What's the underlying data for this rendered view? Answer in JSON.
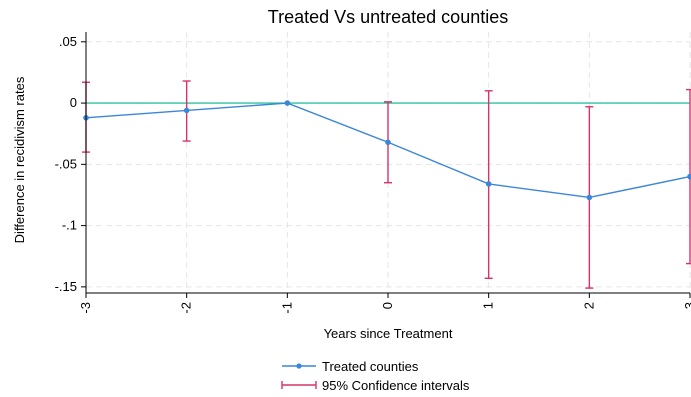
{
  "chart_data": {
    "type": "line",
    "title": "Treated Vs untreated counties",
    "xlabel": "Years since Treatment",
    "ylabel": "Difference in recidivism rates",
    "x": [
      -3,
      -2,
      -1,
      0,
      1,
      2,
      3
    ],
    "x_tick_labels": [
      "-3",
      "-2",
      "-1",
      "0",
      "1",
      "2",
      "3"
    ],
    "y_ticks": [
      0.05,
      0,
      -0.05,
      -0.1,
      -0.15
    ],
    "y_tick_labels": [
      ".05",
      "0",
      "-.05",
      "-.1",
      "-.15"
    ],
    "xlim": [
      -3,
      3
    ],
    "ylim": [
      -0.155,
      0.058
    ],
    "grid": true,
    "reference_line": {
      "y": 0,
      "color": "#2ec4a0"
    },
    "series": [
      {
        "name": "Treated counties",
        "color": "#3b86d8",
        "values": [
          -0.012,
          -0.006,
          0.0,
          -0.032,
          -0.066,
          -0.077,
          -0.06
        ]
      }
    ],
    "confidence_intervals": {
      "name": "95% Confidence intervals",
      "color": "#d6336c",
      "lower": [
        -0.04,
        -0.031,
        0.0,
        -0.065,
        -0.143,
        -0.151,
        -0.131
      ],
      "upper": [
        0.017,
        0.018,
        0.0,
        0.001,
        0.01,
        -0.003,
        0.011
      ]
    },
    "legend_position": "bottom"
  }
}
